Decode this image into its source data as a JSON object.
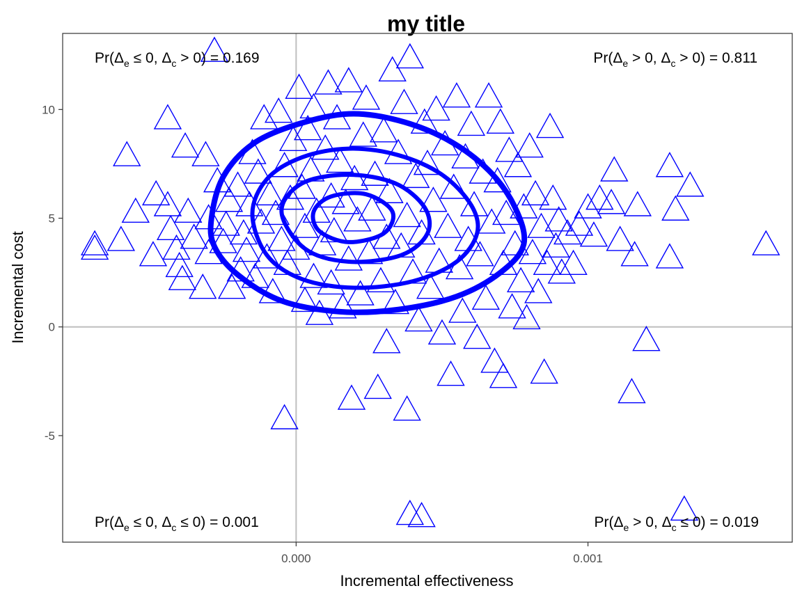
{
  "chart_data": {
    "type": "scatter",
    "title": "my title",
    "xlabel": "Incremental effectiveness",
    "ylabel": "Incremental cost",
    "xlim": [
      -0.0008,
      0.0017
    ],
    "ylim": [
      -9.9,
      13.5
    ],
    "x_ticks": [
      0.0,
      0.001
    ],
    "x_tick_labels": [
      "0.000",
      "0.001"
    ],
    "y_ticks": [
      -5,
      0,
      5,
      10
    ],
    "y_tick_labels": [
      "-5",
      "0",
      "5",
      "10"
    ],
    "reference_lines": {
      "x": 0,
      "y": 0
    },
    "marker": "open-triangle",
    "marker_color": "#0000ff",
    "grid": false,
    "quadrant_annotations": [
      {
        "id": "nw",
        "prefix": "Pr(",
        "d1": "Δ",
        "s1": "e",
        "rel1": " ≤ 0, ",
        "d2": "Δ",
        "s2": "c",
        "rel2": " > 0",
        "suffix": ") = 0.169"
      },
      {
        "id": "ne",
        "prefix": "Pr(",
        "d1": "Δ",
        "s1": "e",
        "rel1": " > 0, ",
        "d2": "Δ",
        "s2": "c",
        "rel2": " > 0",
        "suffix": ") = 0.811"
      },
      {
        "id": "sw",
        "prefix": "Pr(",
        "d1": "Δ",
        "s1": "e",
        "rel1": " ≤ 0, ",
        "d2": "Δ",
        "s2": "c",
        "rel2": " ≤ 0",
        "suffix": ") = 0.001"
      },
      {
        "id": "se",
        "prefix": "Pr(",
        "d1": "Δ",
        "s1": "e",
        "rel1": " > 0, ",
        "d2": "Δ",
        "s2": "c",
        "rel2": " ≤ 0",
        "suffix": ") = 0.019"
      }
    ],
    "points": [
      [
        -0.00069,
        3.8
      ],
      [
        -0.00069,
        3.6
      ],
      [
        -0.0006,
        4.0
      ],
      [
        -0.00058,
        7.9
      ],
      [
        -0.00055,
        5.3
      ],
      [
        -0.00049,
        3.3
      ],
      [
        -0.00048,
        6.1
      ],
      [
        -0.00044,
        5.6
      ],
      [
        -0.00044,
        9.6
      ],
      [
        -0.00043,
        4.5
      ],
      [
        -0.00041,
        3.6
      ],
      [
        -0.0004,
        2.8
      ],
      [
        -0.00039,
        2.2
      ],
      [
        -0.00038,
        8.3
      ],
      [
        -0.00037,
        5.3
      ],
      [
        -0.00035,
        4.1
      ],
      [
        -0.00032,
        1.8
      ],
      [
        -0.00031,
        7.9
      ],
      [
        -0.0003,
        5.0
      ],
      [
        -0.0003,
        3.4
      ],
      [
        -0.00028,
        12.7
      ],
      [
        -0.00027,
        6.7
      ],
      [
        -0.00025,
        3.9
      ],
      [
        -0.00024,
        4.7
      ],
      [
        -0.00023,
        5.8
      ],
      [
        -0.00022,
        1.8
      ],
      [
        -0.0002,
        6.5
      ],
      [
        -0.00019,
        2.6
      ],
      [
        -0.00018,
        4.3
      ],
      [
        -0.00017,
        3.5
      ],
      [
        -0.00016,
        5.6
      ],
      [
        -0.00015,
        8.0
      ],
      [
        -0.00014,
        2.3
      ],
      [
        -0.00013,
        7.1
      ],
      [
        -0.00012,
        4.8
      ],
      [
        -0.00011,
        9.6
      ],
      [
        -0.0001,
        3.2
      ],
      [
        -9e-05,
        6.1
      ],
      [
        -8e-05,
        1.6
      ],
      [
        -7e-05,
        5.2
      ],
      [
        -6e-05,
        9.9
      ],
      [
        -5e-05,
        4.0
      ],
      [
        -4e-05,
        7.4
      ],
      [
        -4e-05,
        -4.2
      ],
      [
        -3e-05,
        2.9
      ],
      [
        -2e-05,
        5.9
      ],
      [
        -1e-05,
        8.6
      ],
      [
        0.0,
        3.6
      ],
      [
        1e-05,
        11.0
      ],
      [
        2e-05,
        6.4
      ],
      [
        3e-05,
        1.2
      ],
      [
        3e-05,
        4.6
      ],
      [
        4e-05,
        9.1
      ],
      [
        5e-05,
        7.2
      ],
      [
        6e-05,
        2.3
      ],
      [
        6e-05,
        10.1
      ],
      [
        7e-05,
        5.3
      ],
      [
        8e-05,
        0.6
      ],
      [
        9e-05,
        3.8
      ],
      [
        0.0001,
        8.2
      ],
      [
        0.00011,
        11.2
      ],
      [
        0.00012,
        6.0
      ],
      [
        0.00012,
        2.0
      ],
      [
        0.00013,
        4.4
      ],
      [
        0.00014,
        9.6
      ],
      [
        0.00015,
        7.6
      ],
      [
        0.00016,
        0.9
      ],
      [
        0.00017,
        5.7
      ],
      [
        0.00018,
        3.1
      ],
      [
        0.00018,
        11.3
      ],
      [
        0.00019,
        -3.3
      ],
      [
        0.0002,
        6.8
      ],
      [
        0.00021,
        4.9
      ],
      [
        0.00022,
        1.5
      ],
      [
        0.00023,
        8.8
      ],
      [
        0.00024,
        10.5
      ],
      [
        0.00025,
        3.4
      ],
      [
        0.00026,
        5.4
      ],
      [
        0.00027,
        7.0
      ],
      [
        0.00028,
        -2.8
      ],
      [
        0.00029,
        2.1
      ],
      [
        0.0003,
        9.0
      ],
      [
        0.00031,
        4.1
      ],
      [
        0.00031,
        -0.7
      ],
      [
        0.00032,
        6.2
      ],
      [
        0.00033,
        11.8
      ],
      [
        0.00034,
        1.1
      ],
      [
        0.00035,
        8.0
      ],
      [
        0.00036,
        3.7
      ],
      [
        0.00037,
        10.3
      ],
      [
        0.00038,
        5.1
      ],
      [
        0.00038,
        -3.8
      ],
      [
        0.00039,
        12.4
      ],
      [
        0.00039,
        -8.6
      ],
      [
        0.0004,
        2.5
      ],
      [
        0.00041,
        6.9
      ],
      [
        0.00042,
        0.3
      ],
      [
        0.00043,
        4.3
      ],
      [
        0.00043,
        -8.7
      ],
      [
        0.00044,
        9.4
      ],
      [
        0.00045,
        7.5
      ],
      [
        0.00046,
        1.8
      ],
      [
        0.00047,
        5.8
      ],
      [
        0.00048,
        10.0
      ],
      [
        0.00049,
        3.0
      ],
      [
        0.0005,
        -0.3
      ],
      [
        0.00051,
        8.4
      ],
      [
        0.00052,
        4.6
      ],
      [
        0.00053,
        -2.2
      ],
      [
        0.00054,
        6.4
      ],
      [
        0.00055,
        10.6
      ],
      [
        0.00056,
        2.7
      ],
      [
        0.00057,
        0.7
      ],
      [
        0.00058,
        7.8
      ],
      [
        0.00059,
        4.0
      ],
      [
        0.0006,
        9.3
      ],
      [
        0.00061,
        5.6
      ],
      [
        0.00062,
        -0.5
      ],
      [
        0.00063,
        3.3
      ],
      [
        0.00064,
        7.1
      ],
      [
        0.00065,
        1.3
      ],
      [
        0.00066,
        10.6
      ],
      [
        0.00067,
        4.8
      ],
      [
        0.00068,
        -1.6
      ],
      [
        0.00069,
        6.7
      ],
      [
        0.0007,
        9.4
      ],
      [
        0.00071,
        2.9
      ],
      [
        0.00071,
        -2.3
      ],
      [
        0.00072,
        5.2
      ],
      [
        0.00073,
        8.1
      ],
      [
        0.00074,
        0.9
      ],
      [
        0.00075,
        3.8
      ],
      [
        0.00076,
        7.4
      ],
      [
        0.00077,
        2.1
      ],
      [
        0.00078,
        5.5
      ],
      [
        0.00079,
        0.4
      ],
      [
        0.0008,
        8.3
      ],
      [
        0.00081,
        3.4
      ],
      [
        0.00082,
        6.1
      ],
      [
        0.00083,
        1.6
      ],
      [
        0.00084,
        4.6
      ],
      [
        0.00085,
        -2.1
      ],
      [
        0.00086,
        2.9
      ],
      [
        0.00087,
        9.2
      ],
      [
        0.00088,
        5.9
      ],
      [
        0.00089,
        3.7
      ],
      [
        0.0009,
        4.9
      ],
      [
        0.00091,
        2.5
      ],
      [
        0.00093,
        4.3
      ],
      [
        0.00095,
        2.9
      ],
      [
        0.00097,
        4.7
      ],
      [
        0.001,
        5.5
      ],
      [
        0.00102,
        4.2
      ],
      [
        0.00104,
        5.9
      ],
      [
        0.00108,
        5.7
      ],
      [
        0.00109,
        7.2
      ],
      [
        0.00111,
        4.0
      ],
      [
        0.00115,
        -3.0
      ],
      [
        0.00116,
        3.3
      ],
      [
        0.00117,
        5.6
      ],
      [
        0.0012,
        -0.6
      ],
      [
        0.00128,
        3.2
      ],
      [
        0.00128,
        7.4
      ],
      [
        0.0013,
        5.4
      ],
      [
        0.00133,
        -8.4
      ],
      [
        0.00135,
        6.5
      ],
      [
        0.00161,
        3.8
      ]
    ],
    "contours": [
      [
        [
          -0.00029,
          5.0
        ],
        [
          -0.00025,
          6.9
        ],
        [
          -0.00015,
          8.4
        ],
        [
          0.0,
          9.3
        ],
        [
          0.00018,
          9.8
        ],
        [
          0.00035,
          9.5
        ],
        [
          0.00052,
          8.6
        ],
        [
          0.00066,
          7.2
        ],
        [
          0.00075,
          5.5
        ],
        [
          0.00078,
          3.8
        ],
        [
          0.0007,
          2.5
        ],
        [
          0.00055,
          1.4
        ],
        [
          0.00035,
          0.8
        ],
        [
          0.00015,
          0.7
        ],
        [
          -5e-05,
          1.2
        ],
        [
          -0.0002,
          2.4
        ],
        [
          -0.00028,
          3.7
        ],
        [
          -0.00029,
          5.0
        ]
      ],
      [
        [
          -0.00015,
          5.2
        ],
        [
          -0.0001,
          6.8
        ],
        [
          2e-05,
          7.8
        ],
        [
          0.00018,
          8.2
        ],
        [
          0.00035,
          7.9
        ],
        [
          0.0005,
          7.0
        ],
        [
          0.0006,
          5.6
        ],
        [
          0.00062,
          4.3
        ],
        [
          0.00055,
          3.0
        ],
        [
          0.0004,
          2.1
        ],
        [
          0.0002,
          1.8
        ],
        [
          2e-05,
          2.2
        ],
        [
          -0.0001,
          3.3
        ],
        [
          -0.00015,
          5.2
        ]
      ],
      [
        [
          -5e-05,
          5.3
        ],
        [
          2e-05,
          6.6
        ],
        [
          0.00018,
          7.0
        ],
        [
          0.00034,
          6.6
        ],
        [
          0.00044,
          5.5
        ],
        [
          0.00045,
          4.3
        ],
        [
          0.00036,
          3.3
        ],
        [
          0.00018,
          3.0
        ],
        [
          3e-05,
          3.6
        ],
        [
          -5e-05,
          5.3
        ]
      ],
      [
        [
          6e-05,
          5.3
        ],
        [
          0.00012,
          6.0
        ],
        [
          0.00024,
          6.1
        ],
        [
          0.00033,
          5.3
        ],
        [
          0.0003,
          4.3
        ],
        [
          0.00018,
          3.9
        ],
        [
          8e-05,
          4.4
        ],
        [
          6e-05,
          5.3
        ]
      ]
    ]
  }
}
